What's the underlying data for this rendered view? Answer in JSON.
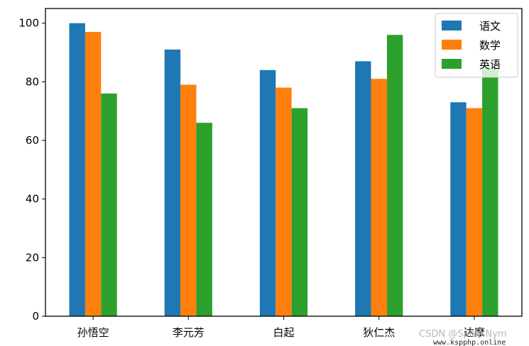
{
  "chart_data": {
    "type": "bar",
    "title": "",
    "xlabel": "",
    "ylabel": "",
    "categories": [
      "孙悟空",
      "李元芳",
      "白起",
      "狄仁杰",
      "达摩"
    ],
    "series": [
      {
        "name": "语文",
        "color": "#1f77b4",
        "values": [
          100,
          91,
          84,
          87,
          73
        ]
      },
      {
        "name": "数学",
        "color": "#ff7f0e",
        "values": [
          97,
          79,
          78,
          81,
          71
        ]
      },
      {
        "name": "英语",
        "color": "#2ca02c",
        "values": [
          76,
          66,
          71,
          96,
          85
        ]
      }
    ],
    "ylim": [
      0,
      105
    ],
    "yticks": [
      0,
      20,
      40,
      60,
      80,
      100
    ],
    "grid": false,
    "legend_position": "top-right"
  },
  "watermark": {
    "csdn": "CSDN @Spike.Nym",
    "site": "www.kspphp.online"
  }
}
